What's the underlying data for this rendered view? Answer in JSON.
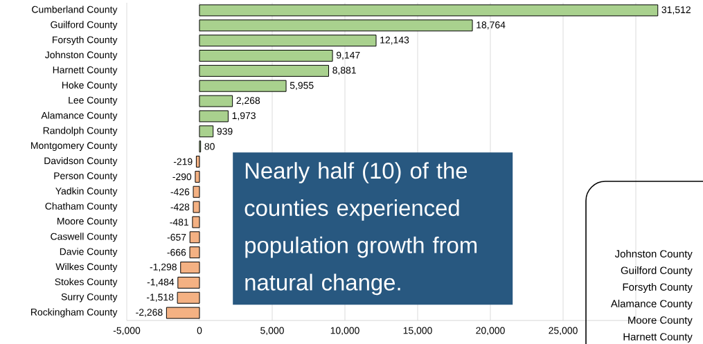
{
  "chart_data": [
    {
      "type": "bar",
      "orientation": "horizontal",
      "categories": [
        "Cumberland County",
        "Guilford County",
        "Forsyth County",
        "Johnston County",
        "Harnett County",
        "Hoke County",
        "Lee County",
        "Alamance County",
        "Randolph County",
        "Montgomery County",
        "Davidson County",
        "Person County",
        "Yadkin County",
        "Chatham County",
        "Moore County",
        "Caswell County",
        "Davie County",
        "Wilkes County",
        "Stokes County",
        "Surry County",
        "Rockingham County"
      ],
      "values": [
        31512,
        18764,
        12143,
        9147,
        8881,
        5955,
        2268,
        1973,
        939,
        80,
        -219,
        -290,
        -426,
        -428,
        -481,
        -657,
        -666,
        -1298,
        -1484,
        -1518,
        -2268
      ],
      "value_labels": [
        "31,512",
        "18,764",
        "12,143",
        "9,147",
        "8,881",
        "5,955",
        "2,268",
        "1,973",
        "939",
        "80",
        "-219",
        "-290",
        "-426",
        "-428",
        "-481",
        "-657",
        "-666",
        "-1,298",
        "-1,484",
        "-1,518",
        "-2,268"
      ],
      "colors": [
        "#a9d18e",
        "#a9d18e",
        "#a9d18e",
        "#a9d18e",
        "#a9d18e",
        "#a9d18e",
        "#a9d18e",
        "#a9d18e",
        "#a9d18e",
        "#a9d18e",
        "#f4b183",
        "#f4b183",
        "#f4b183",
        "#f4b183",
        "#f4b183",
        "#f4b183",
        "#f4b183",
        "#f4b183",
        "#f4b183",
        "#f4b183",
        "#f4b183"
      ],
      "xlim": [
        -5000,
        32500
      ],
      "xticks": [
        {
          "value": -5000,
          "label": "-5,000"
        },
        0,
        {
          "value": 5000,
          "label": "5,000"
        },
        {
          "value": 10000,
          "label": "10,000"
        },
        {
          "value": 15000,
          "label": "15,000"
        },
        {
          "value": 20000,
          "label": "20,000"
        },
        {
          "value": 25000,
          "label": "25,000"
        },
        {
          "value": 30000,
          "label": null
        }
      ],
      "grid": "x",
      "annotations": [
        "Nearly half (10) of the counties experienced population growth from natural change."
      ]
    },
    {
      "type": "other",
      "annotations": [
        "Johnston County",
        "Guilford County",
        "Forsyth County",
        "Alamance County",
        "Moore County",
        "Harnett County"
      ]
    }
  ]
}
